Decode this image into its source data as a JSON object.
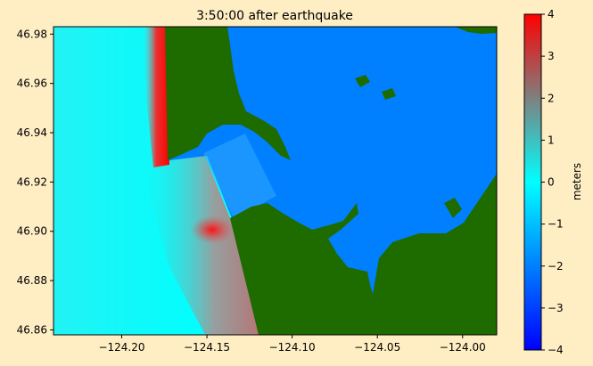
{
  "chart_data": {
    "type": "heatmap",
    "title": "3:50:00 after earthquake",
    "xlabel": "",
    "ylabel": "",
    "xlim": [
      -124.24,
      -123.98
    ],
    "ylim": [
      46.858,
      46.983
    ],
    "x_ticks": [
      -124.2,
      -124.15,
      -124.1,
      -124.05,
      -124.0
    ],
    "x_tick_labels": [
      "−124.20",
      "−124.15",
      "−124.10",
      "−124.05",
      "−124.00"
    ],
    "y_ticks": [
      46.86,
      46.88,
      46.9,
      46.92,
      46.94,
      46.96,
      46.98
    ],
    "y_tick_labels": [
      "46.86",
      "46.88",
      "46.90",
      "46.92",
      "46.94",
      "46.96",
      "46.98"
    ],
    "grid": false,
    "colorbar": {
      "label": "meters",
      "range": [
        -4,
        4
      ],
      "ticks": [
        -4,
        -3,
        -2,
        -1,
        0,
        1,
        2,
        3,
        4
      ],
      "tick_labels": [
        "−4",
        "−3",
        "−2",
        "−1",
        "0",
        "1",
        "2",
        "3",
        "4"
      ],
      "colors": [
        "#0000ff",
        "#00ffff",
        "#ff0000"
      ]
    },
    "colors": {
      "land": "#1e6b00",
      "bay_water": "#0080ff",
      "ocean_near": "#00ffff",
      "wave_max": "#ff0000"
    }
  }
}
